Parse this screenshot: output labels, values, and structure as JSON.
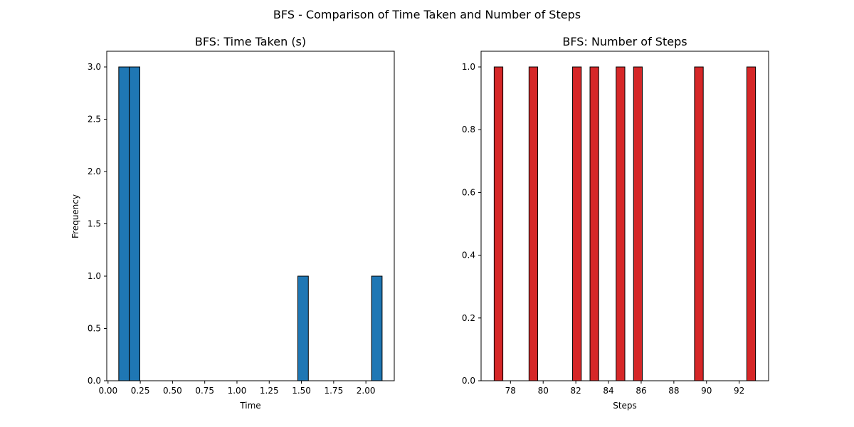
{
  "suptitle": "BFS - Comparison of Time Taken and Number of Steps",
  "chart_data": [
    {
      "type": "bar",
      "title": "BFS: Time Taken (s)",
      "xlabel": "Time",
      "ylabel": "Frequency",
      "xlim": [
        -0.01,
        2.22
      ],
      "ylim": [
        0,
        3.15
      ],
      "bar_width": 0.0817,
      "color": "#1f77b4",
      "edge_color": "#000000",
      "xticks": [
        0.0,
        0.25,
        0.5,
        0.75,
        1.0,
        1.25,
        1.5,
        1.75,
        2.0
      ],
      "xtick_labels": [
        "0.00",
        "0.25",
        "0.50",
        "0.75",
        "1.00",
        "1.25",
        "1.50",
        "1.75",
        "2.00"
      ],
      "yticks": [
        0.0,
        0.5,
        1.0,
        1.5,
        2.0,
        2.5,
        3.0
      ],
      "ytick_labels": [
        "0.0",
        "0.5",
        "1.0",
        "1.5",
        "2.0",
        "2.5",
        "3.0"
      ],
      "bars": [
        {
          "x": 0.083,
          "value": 3
        },
        {
          "x": 0.165,
          "value": 3
        },
        {
          "x": 1.472,
          "value": 1
        },
        {
          "x": 2.044,
          "value": 1
        }
      ],
      "grid": false
    },
    {
      "type": "bar",
      "title": "BFS: Number of Steps",
      "xlabel": "Steps",
      "ylabel": "",
      "xlim": [
        76.2,
        93.8
      ],
      "ylim": [
        0,
        1.05
      ],
      "bar_width": 0.5333,
      "color": "#d62728",
      "edge_color": "#000000",
      "xticks": [
        78,
        80,
        82,
        84,
        86,
        88,
        90,
        92
      ],
      "xtick_labels": [
        "78",
        "80",
        "82",
        "84",
        "86",
        "88",
        "90",
        "92"
      ],
      "yticks": [
        0.0,
        0.2,
        0.4,
        0.6,
        0.8,
        1.0
      ],
      "ytick_labels": [
        "0.0",
        "0.2",
        "0.4",
        "0.6",
        "0.8",
        "1.0"
      ],
      "bars": [
        {
          "x": 77.0,
          "value": 1
        },
        {
          "x": 79.1333,
          "value": 1
        },
        {
          "x": 81.8,
          "value": 1
        },
        {
          "x": 82.8667,
          "value": 1
        },
        {
          "x": 84.4667,
          "value": 1
        },
        {
          "x": 85.5333,
          "value": 1
        },
        {
          "x": 89.2667,
          "value": 1
        },
        {
          "x": 92.4667,
          "value": 1
        }
      ],
      "grid": false
    }
  ]
}
